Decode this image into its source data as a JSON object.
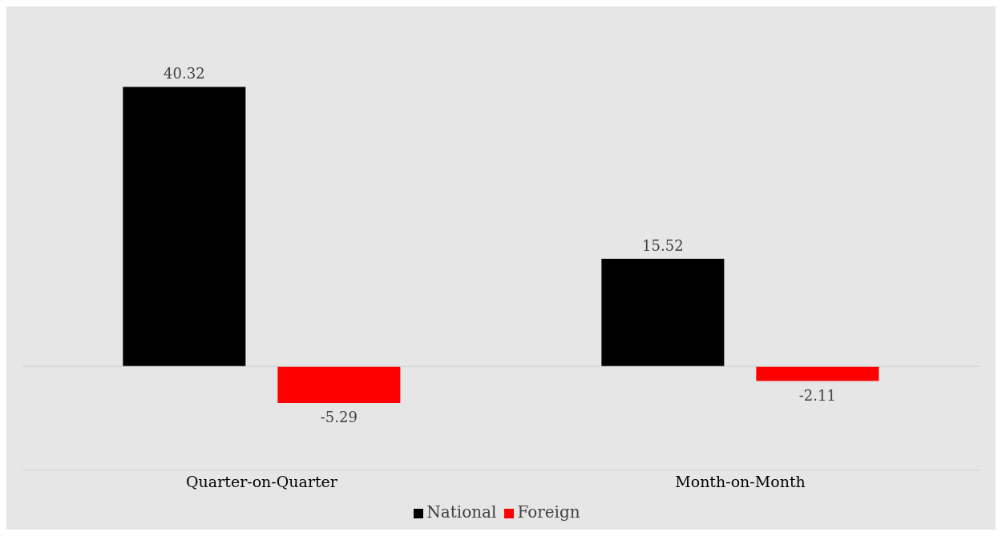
{
  "chart_data": {
    "type": "bar",
    "categories": [
      "Quarter-on-Quarter",
      "Month-on-Month"
    ],
    "series": [
      {
        "name": "National",
        "color": "#000000",
        "values": [
          40.32,
          15.52
        ]
      },
      {
        "name": "Foreign",
        "color": "#ff0000",
        "values": [
          -5.29,
          -2.11
        ]
      }
    ],
    "data_labels": true,
    "legend": "bottom"
  }
}
